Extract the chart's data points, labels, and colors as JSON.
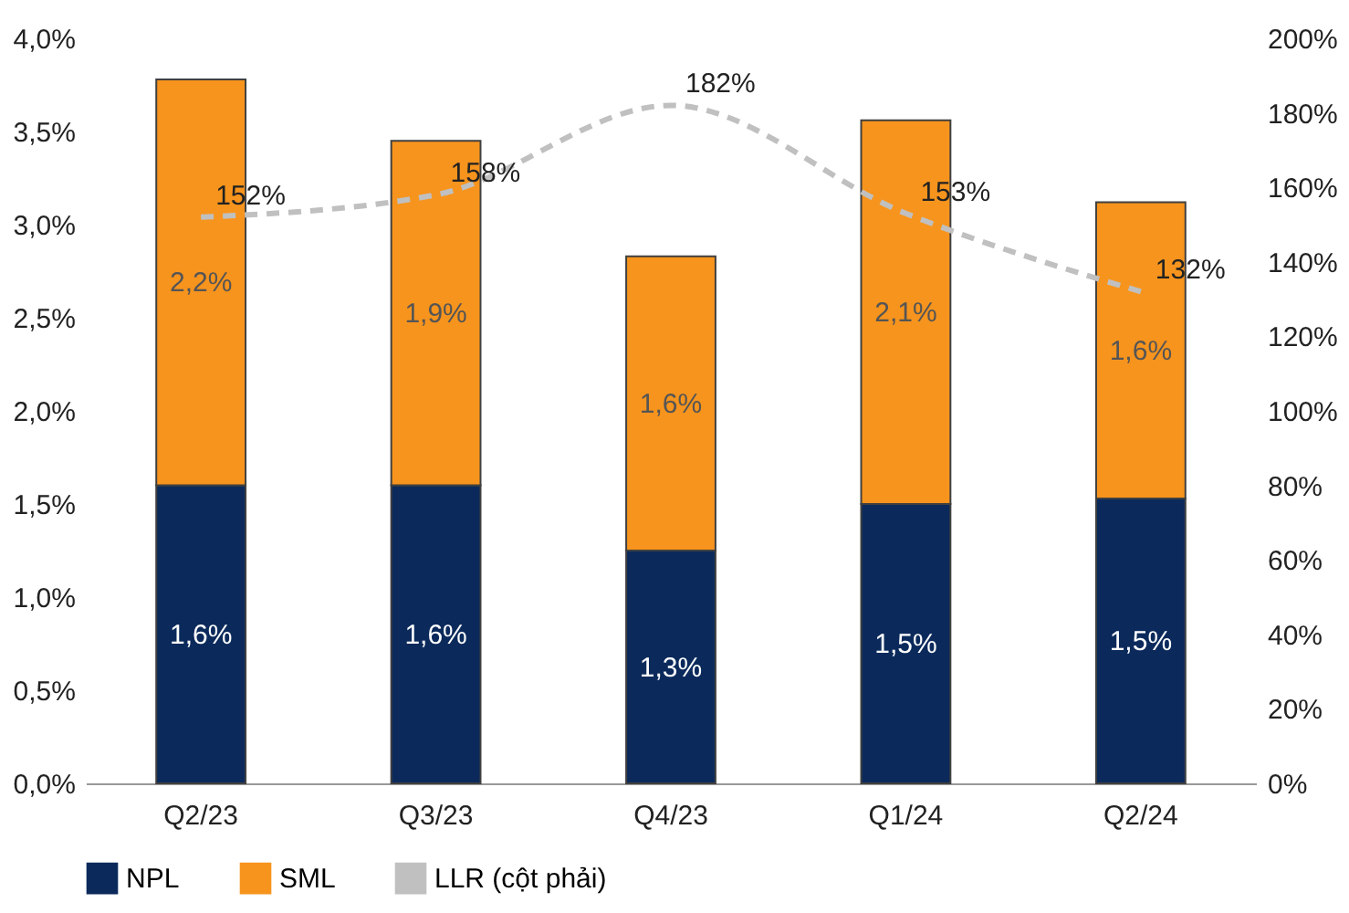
{
  "chart_data": {
    "type": "bar",
    "stacked": true,
    "categories": [
      "Q2/23",
      "Q3/23",
      "Q4/23",
      "Q1/24",
      "Q2/24"
    ],
    "series": [
      {
        "name": "NPL",
        "color": "#0b2a5b",
        "values": [
          1.6,
          1.6,
          1.25,
          1.5,
          1.53
        ],
        "value_labels": [
          "1,6%",
          "1,6%",
          "1,3%",
          "1,5%",
          "1,5%"
        ]
      },
      {
        "name": "SML",
        "color": "#f7941d",
        "values": [
          2.18,
          1.85,
          1.58,
          2.06,
          1.59
        ],
        "value_labels": [
          "2,2%",
          "1,9%",
          "1,6%",
          "2,1%",
          "1,6%"
        ]
      },
      {
        "name": "LLR (cột phải)",
        "type": "line",
        "axis": "y2",
        "color": "#c0c0c0",
        "line_style": "dashed",
        "marker": "none",
        "values": [
          152,
          158,
          182,
          153,
          132
        ],
        "value_labels": [
          "152%",
          "158%",
          "182%",
          "153%",
          "132%"
        ]
      }
    ],
    "ylim": [
      0,
      4
    ],
    "yticks": [
      {
        "value": 0,
        "label": "0,0%"
      },
      {
        "value": 0.5,
        "label": "0,5%"
      },
      {
        "value": 1,
        "label": "1,0%"
      },
      {
        "value": 1.5,
        "label": "1,5%"
      },
      {
        "value": 2,
        "label": "2,0%"
      },
      {
        "value": 2.5,
        "label": "2,5%"
      },
      {
        "value": 3,
        "label": "3,0%"
      },
      {
        "value": 3.5,
        "label": "3,5%"
      },
      {
        "value": 4,
        "label": "4,0%"
      }
    ],
    "y2lim": [
      0,
      200
    ],
    "y2ticks": [
      {
        "value": 0,
        "label": "0%"
      },
      {
        "value": 20,
        "label": "20%"
      },
      {
        "value": 40,
        "label": "40%"
      },
      {
        "value": 60,
        "label": "60%"
      },
      {
        "value": 80,
        "label": "80%"
      },
      {
        "value": 100,
        "label": "100%"
      },
      {
        "value": 120,
        "label": "120%"
      },
      {
        "value": 140,
        "label": "140%"
      },
      {
        "value": 160,
        "label": "160%"
      },
      {
        "value": 180,
        "label": "180%"
      },
      {
        "value": 200,
        "label": "200%"
      }
    ],
    "grid": false,
    "legend": "bottom"
  }
}
